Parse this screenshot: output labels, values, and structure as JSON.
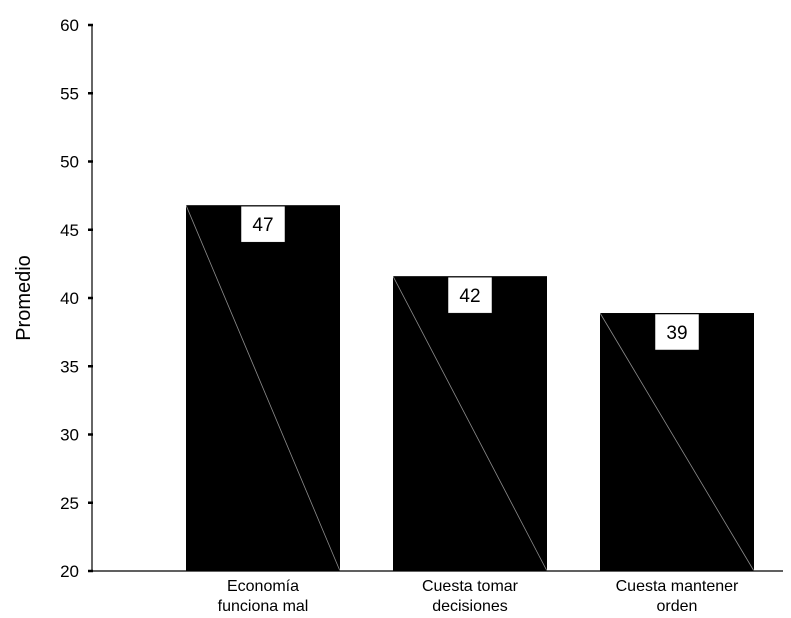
{
  "chart_data": {
    "type": "bar",
    "categories": [
      [
        "Economía",
        "funciona mal"
      ],
      [
        "Cuesta tomar",
        "decisiones"
      ],
      [
        "Cuesta mantener",
        "orden"
      ]
    ],
    "values": [
      46.8,
      41.6,
      38.9
    ],
    "data_labels": [
      "47",
      "42",
      "39"
    ],
    "ylabel": "Promedio",
    "xlabel": "",
    "ylim": [
      20,
      60
    ],
    "yticks": [
      "20",
      "25",
      "30",
      "35",
      "40",
      "45",
      "50",
      "55",
      "60"
    ],
    "bar_color": "#000000",
    "label_box_color": "#ffffff",
    "grid": false
  }
}
